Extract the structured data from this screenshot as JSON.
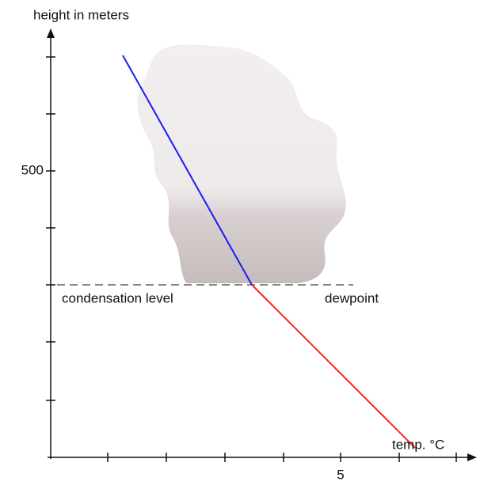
{
  "axes": {
    "y_label": "height in meters",
    "x_label": "temp. °C",
    "y_tick_label": "500",
    "x_tick_label": "5"
  },
  "labels": {
    "condensation": "condensation level",
    "dewpoint": "dewpoint"
  }
}
